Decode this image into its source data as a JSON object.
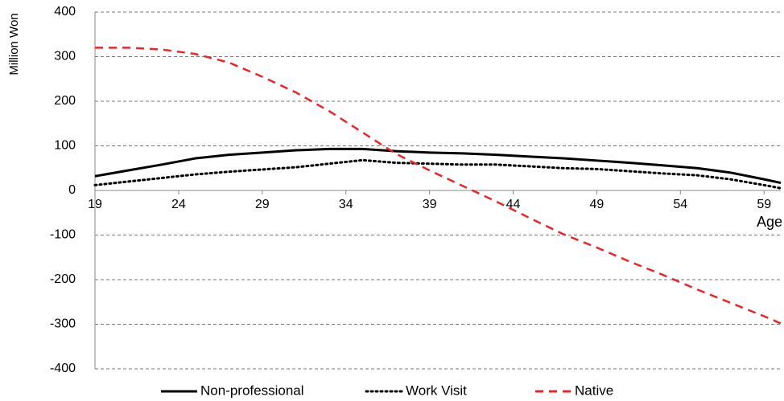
{
  "chart_data": {
    "type": "line",
    "y_label": "Million Won",
    "x_label": "Age",
    "x": [
      19,
      21,
      23,
      25,
      27,
      29,
      31,
      33,
      35,
      37,
      39,
      41,
      43,
      45,
      47,
      49,
      51,
      53,
      55,
      57,
      59,
      60
    ],
    "xlim": [
      19,
      60
    ],
    "xticks": [
      19,
      24,
      29,
      34,
      39,
      44,
      49,
      54,
      59
    ],
    "ylim": [
      -400,
      400
    ],
    "yticks": [
      400,
      300,
      200,
      100,
      0,
      -100,
      -200,
      -300,
      -400
    ],
    "grid": true,
    "series": [
      {
        "name": "Non-professional",
        "color": "#000000",
        "dash": "solid",
        "values": [
          32,
          45,
          58,
          72,
          80,
          85,
          90,
          93,
          93,
          88,
          85,
          83,
          80,
          76,
          72,
          67,
          62,
          56,
          50,
          40,
          25,
          17
        ]
      },
      {
        "name": "Work Visit",
        "color": "#000000",
        "dash": "dotted",
        "values": [
          12,
          20,
          28,
          36,
          42,
          47,
          52,
          60,
          68,
          62,
          60,
          58,
          58,
          54,
          50,
          48,
          43,
          38,
          34,
          25,
          12,
          5
        ]
      },
      {
        "name": "Native",
        "color": "#e8262a",
        "dash": "dashed",
        "values": [
          320,
          320,
          316,
          306,
          287,
          255,
          220,
          178,
          130,
          82,
          45,
          10,
          -25,
          -62,
          -98,
          -128,
          -160,
          -190,
          -222,
          -252,
          -282,
          -298
        ]
      }
    ],
    "legend": "bottom"
  }
}
